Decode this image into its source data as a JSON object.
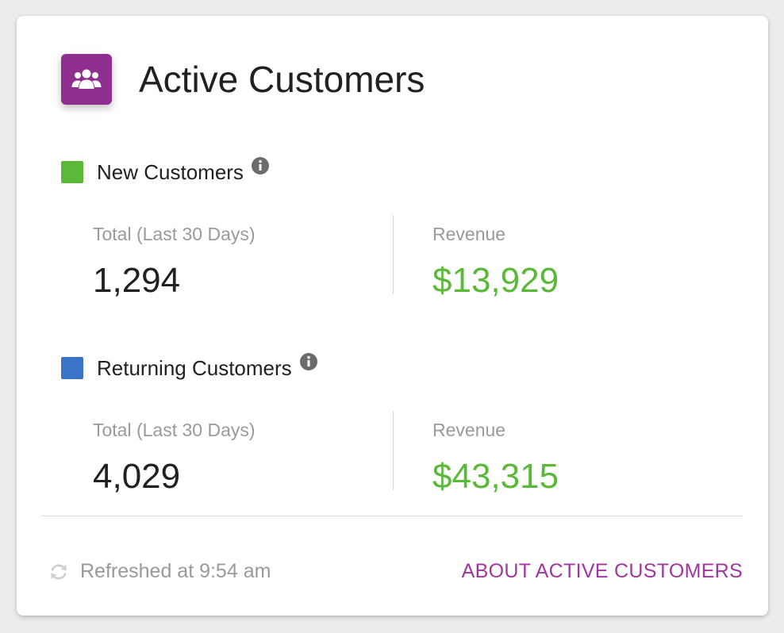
{
  "card": {
    "title": "Active Customers",
    "icon": "users-group-icon",
    "accent_color": "#8e2f8f"
  },
  "sections": [
    {
      "label": "New Customers",
      "swatch_color": "#5bb93a",
      "total_caption": "Total (Last 30 Days)",
      "total_value": "1,294",
      "revenue_caption": "Revenue",
      "revenue_value": "$13,929"
    },
    {
      "label": "Returning Customers",
      "swatch_color": "#3b73c9",
      "total_caption": "Total (Last 30 Days)",
      "total_value": "4,029",
      "revenue_caption": "Revenue",
      "revenue_value": "$43,315"
    }
  ],
  "footer": {
    "refresh_icon": "refresh-icon",
    "refreshed_text": "Refreshed at 9:54 am",
    "link_label": "ABOUT ACTIVE CUSTOMERS",
    "link_color": "#a0379e"
  },
  "colors": {
    "revenue_green": "#5bb93a",
    "muted_text": "#9a9a9a"
  }
}
